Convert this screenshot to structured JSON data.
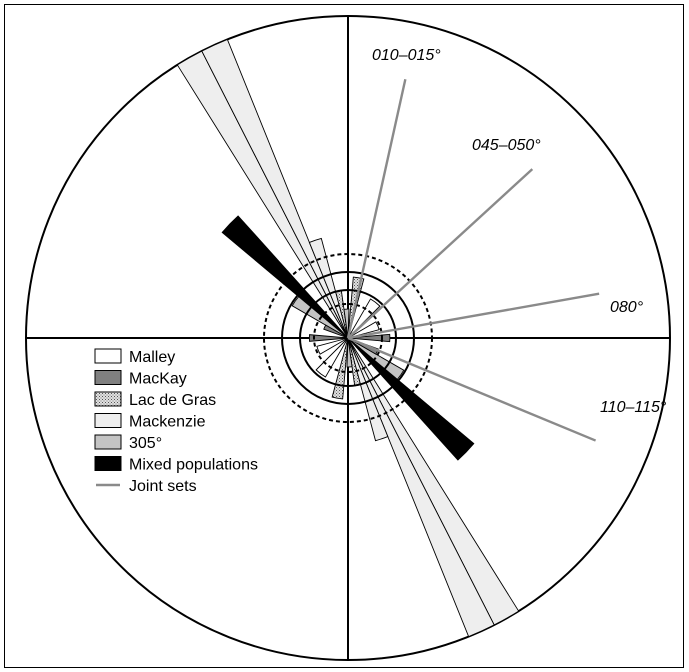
{
  "legend": {
    "items": [
      {
        "label": "Malley",
        "fill": "#ffffff",
        "pattern": "none"
      },
      {
        "label": "MacKay",
        "fill": "#808080",
        "pattern": "none"
      },
      {
        "label": "Lac de Gras",
        "fill": "#d0d0d0",
        "pattern": "stipple"
      },
      {
        "label": "Mackenzie",
        "fill": "#eeeeee",
        "pattern": "none"
      },
      {
        "label": "305°",
        "fill": "#c4c4c4",
        "pattern": "none"
      },
      {
        "label": "Mixed populations",
        "fill": "#000000",
        "pattern": "none"
      }
    ],
    "joint_label": "Joint sets",
    "joint_color": "#8a8a8a"
  },
  "joint_sets": [
    {
      "label": "010–015°",
      "azimuth": 12.5
    },
    {
      "label": "045–050°",
      "azimuth": 47.5
    },
    {
      "label": "080°",
      "azimuth": 80
    },
    {
      "label": "110–115°",
      "azimuth": 112.5
    }
  ],
  "petals": [
    {
      "population": "Mackenzie",
      "az_from": 328,
      "az_to": 333,
      "r": 1.0
    },
    {
      "population": "Mackenzie",
      "az_from": 333,
      "az_to": 338,
      "r": 1.0
    },
    {
      "population": "Mackenzie",
      "az_from": 148,
      "az_to": 153,
      "r": 1.0
    },
    {
      "population": "Mackenzie",
      "az_from": 153,
      "az_to": 158,
      "r": 1.0
    },
    {
      "population": "Mixed populations",
      "az_from": 310,
      "az_to": 318,
      "r": 0.51
    },
    {
      "population": "Mixed populations",
      "az_from": 130,
      "az_to": 138,
      "r": 0.51
    },
    {
      "population": "305°",
      "az_from": 300,
      "az_to": 310,
      "r": 0.2
    },
    {
      "population": "305°",
      "az_from": 120,
      "az_to": 130,
      "r": 0.2
    },
    {
      "population": "Mackenzie",
      "az_from": 338,
      "az_to": 345,
      "r": 0.32
    },
    {
      "population": "Mackenzie",
      "az_from": 158,
      "az_to": 165,
      "r": 0.33
    },
    {
      "population": "Lac de Gras",
      "az_from": 5,
      "az_to": 15,
      "r": 0.19
    },
    {
      "population": "Lac de Gras",
      "az_from": 185,
      "az_to": 195,
      "r": 0.19
    },
    {
      "population": "Lac de Gras",
      "az_from": 345,
      "az_to": 352,
      "r": 0.15
    },
    {
      "population": "Lac de Gras",
      "az_from": 165,
      "az_to": 172,
      "r": 0.15
    },
    {
      "population": "Malley",
      "az_from": 30,
      "az_to": 45,
      "r": 0.14
    },
    {
      "population": "Malley",
      "az_from": 210,
      "az_to": 225,
      "r": 0.14
    },
    {
      "population": "Malley",
      "az_from": 60,
      "az_to": 75,
      "r": 0.1
    },
    {
      "population": "Malley",
      "az_from": 240,
      "az_to": 255,
      "r": 0.1
    },
    {
      "population": "MacKay",
      "az_from": 85,
      "az_to": 95,
      "r": 0.13
    },
    {
      "population": "MacKay",
      "az_from": 265,
      "az_to": 275,
      "r": 0.12
    },
    {
      "population": "MacKay",
      "az_from": 110,
      "az_to": 120,
      "r": 0.1
    },
    {
      "population": "MacKay",
      "az_from": 290,
      "az_to": 300,
      "r": 0.08
    },
    {
      "population": "305°",
      "az_from": 352,
      "az_to": 2,
      "r": 0.09
    },
    {
      "population": "305°",
      "az_from": 172,
      "az_to": 182,
      "r": 0.09
    }
  ]
}
